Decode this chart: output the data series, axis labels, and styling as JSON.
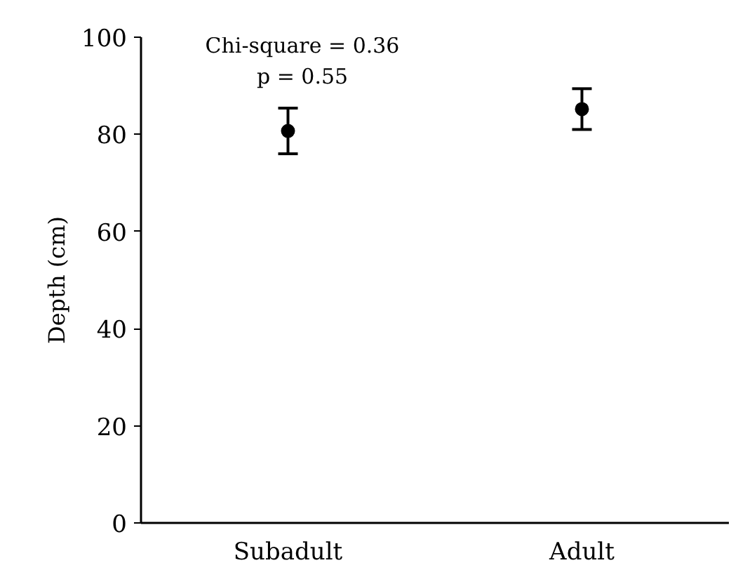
{
  "chart_data": {
    "type": "scatter",
    "ylabel": "Depth (cm)",
    "categories": [
      "Subadult",
      "Adult"
    ],
    "series": [
      {
        "color": "#000000",
        "values": [
          80.7,
          85.2
        ],
        "errors": [
          4.7,
          4.2
        ]
      }
    ],
    "ylim": [
      0,
      100
    ],
    "yticks": [
      0,
      20,
      40,
      60,
      80,
      100
    ],
    "grid": false,
    "marker": "circle",
    "annotations": [
      "Chi-square = 0.36",
      "p = 0.55"
    ]
  }
}
